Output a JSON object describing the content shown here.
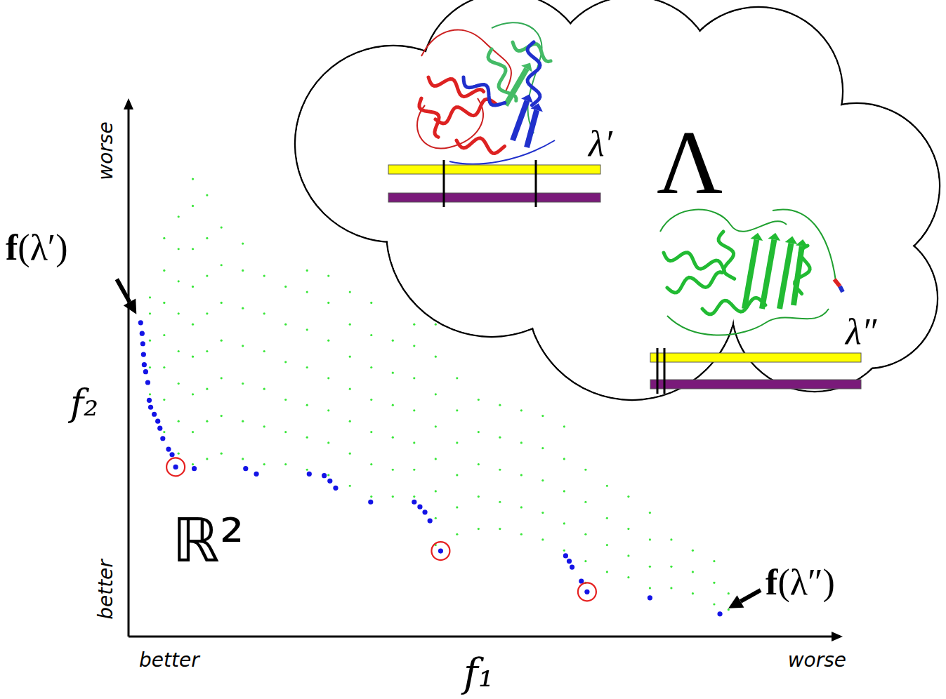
{
  "chart_data": {
    "type": "scatter",
    "x_label": "f₁",
    "y_label": "f₂",
    "xlim": [
      0,
      100
    ],
    "ylim": [
      0,
      100
    ],
    "tick_labels": false,
    "grid": false,
    "annotations": {
      "x_low": "better",
      "x_high": "worse",
      "y_low": "better",
      "y_high": "worse",
      "space": "ℝ²",
      "decision_space": "Λ",
      "point_a": "f(λ′)",
      "point_b": "f(λ″)",
      "design_a": "λ′",
      "design_b": "λ″"
    },
    "series": [
      {
        "type": "scatter",
        "color": "#39e639",
        "marker": "dot",
        "x": [
          3,
          3,
          3,
          3,
          3,
          5,
          5,
          5,
          5,
          5,
          5,
          5,
          7,
          7,
          7,
          7,
          7,
          7,
          7,
          7,
          9,
          9,
          9,
          9,
          9,
          9,
          9,
          9,
          9,
          11,
          11,
          11,
          11,
          11,
          11,
          11,
          11,
          13,
          13,
          13,
          13,
          13,
          13,
          13,
          16,
          16,
          16,
          16,
          16,
          16,
          16,
          19,
          19,
          19,
          19,
          19,
          19,
          22,
          22,
          22,
          22,
          22,
          22,
          25,
          25,
          25,
          25,
          25,
          25,
          25,
          28,
          28,
          28,
          28,
          28,
          28,
          28,
          31,
          31,
          31,
          31,
          31,
          31,
          31,
          34,
          34,
          34,
          34,
          34,
          34,
          34,
          37,
          37,
          37,
          37,
          37,
          37,
          40,
          40,
          40,
          40,
          40,
          40,
          40,
          43,
          43,
          43,
          43,
          43,
          43,
          43,
          43,
          46,
          46,
          46,
          46,
          46,
          46,
          49,
          49,
          49,
          49,
          49,
          52,
          52,
          52,
          52,
          52,
          55,
          55,
          55,
          55,
          55,
          58,
          58,
          58,
          58,
          58,
          61,
          61,
          61,
          61,
          61,
          64,
          64,
          64,
          64,
          64,
          67,
          67,
          67,
          67,
          70,
          70,
          70,
          70,
          73,
          73,
          73,
          73,
          76,
          76,
          76,
          79,
          79,
          79,
          82,
          82,
          82,
          84,
          84
        ],
        "values": [
          45,
          50,
          55,
          60,
          63,
          38,
          44,
          50,
          56,
          62,
          68,
          74,
          34,
          40,
          47,
          53,
          60,
          66,
          72,
          78,
          32,
          38,
          45,
          52,
          58,
          65,
          72,
          80,
          85,
          33,
          40,
          46,
          53,
          60,
          67,
          74,
          82,
          34,
          41,
          48,
          55,
          62,
          69,
          76,
          33,
          40,
          47,
          54,
          61,
          68,
          73,
          32,
          39,
          46,
          53,
          60,
          67,
          32,
          38,
          44,
          51,
          58,
          65,
          31,
          37,
          43,
          50,
          57,
          64,
          68,
          30,
          36,
          42,
          48,
          55,
          62,
          67,
          28,
          34,
          40,
          46,
          52,
          58,
          64,
          26,
          32,
          38,
          44,
          50,
          56,
          62,
          26,
          31,
          37,
          43,
          49,
          55,
          26,
          31,
          36,
          42,
          48,
          54,
          58,
          17,
          22,
          27,
          33,
          39,
          45,
          52,
          58,
          19,
          24,
          30,
          36,
          42,
          48,
          20,
          26,
          32,
          38,
          44,
          20,
          25,
          31,
          37,
          43,
          19,
          24,
          30,
          36,
          42,
          18,
          23,
          29,
          35,
          41,
          16,
          21,
          27,
          33,
          39,
          10,
          14,
          19,
          25,
          31,
          12,
          17,
          22,
          28,
          11,
          15,
          20,
          26,
          9,
          13,
          18,
          23,
          9,
          13,
          18,
          8,
          12,
          16,
          6,
          10,
          14,
          5,
          8
        ]
      },
      {
        "type": "scatter",
        "color": "#1414e6",
        "marker": "circle",
        "x": [
          1.7,
          1.9,
          2.0,
          2.1,
          2.2,
          2.4,
          2.7,
          2.9,
          3.1,
          3.6,
          4.1,
          4.4,
          4.8,
          5.6,
          6.1,
          6.6,
          9.2,
          16.4,
          17.9,
          25.3,
          27.4,
          28.2,
          29.0,
          33.9,
          40.0,
          40.8,
          41.5,
          42.2,
          43.7,
          61.2,
          61.7,
          62.1,
          63.4,
          64.2,
          73.0,
          82.8
        ],
        "values": [
          58.3,
          56.3,
          54.4,
          52.4,
          50.5,
          49.2,
          47.2,
          43.9,
          42.6,
          41.3,
          40.0,
          38.7,
          36.8,
          34.8,
          33.8,
          31.5,
          31.2,
          31.2,
          30.2,
          30.2,
          29.9,
          28.9,
          27.6,
          25.0,
          25.0,
          24.1,
          23.1,
          21.5,
          15.9,
          15.0,
          14.0,
          12.9,
          10.3,
          8.3,
          7.2,
          4.2
        ]
      },
      {
        "type": "scatter",
        "color": "#e62020",
        "marker": "ring",
        "x": [
          6.6,
          43.7,
          64.2
        ],
        "values": [
          31.5,
          15.9,
          8.3
        ]
      }
    ]
  }
}
